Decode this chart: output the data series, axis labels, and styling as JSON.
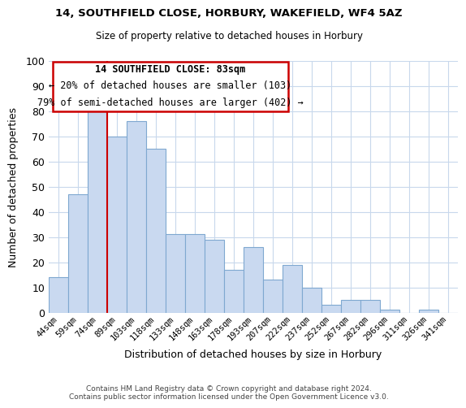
{
  "title1": "14, SOUTHFIELD CLOSE, HORBURY, WAKEFIELD, WF4 5AZ",
  "title2": "Size of property relative to detached houses in Horbury",
  "xlabel": "Distribution of detached houses by size in Horbury",
  "ylabel": "Number of detached properties",
  "bar_color": "#c9d9f0",
  "bar_edge_color": "#7fa8d0",
  "bin_labels": [
    "44sqm",
    "59sqm",
    "74sqm",
    "89sqm",
    "103sqm",
    "118sqm",
    "133sqm",
    "148sqm",
    "163sqm",
    "178sqm",
    "193sqm",
    "207sqm",
    "222sqm",
    "237sqm",
    "252sqm",
    "267sqm",
    "282sqm",
    "296sqm",
    "311sqm",
    "326sqm",
    "341sqm"
  ],
  "values": [
    14,
    47,
    81,
    70,
    76,
    65,
    31,
    31,
    29,
    17,
    26,
    13,
    19,
    10,
    3,
    5,
    5,
    1,
    0,
    1,
    0
  ],
  "ylim": [
    0,
    100
  ],
  "yticks": [
    0,
    10,
    20,
    30,
    40,
    50,
    60,
    70,
    80,
    90,
    100
  ],
  "vline_color": "#cc0000",
  "vline_xindex": 2.5,
  "annotation_line1": "14 SOUTHFIELD CLOSE: 83sqm",
  "annotation_line2": "← 20% of detached houses are smaller (103)",
  "annotation_line3": "79% of semi-detached houses are larger (402) →",
  "footer1": "Contains HM Land Registry data © Crown copyright and database right 2024.",
  "footer2": "Contains public sector information licensed under the Open Government Licence v3.0.",
  "background_color": "#ffffff",
  "grid_color": "#c8d8ec"
}
